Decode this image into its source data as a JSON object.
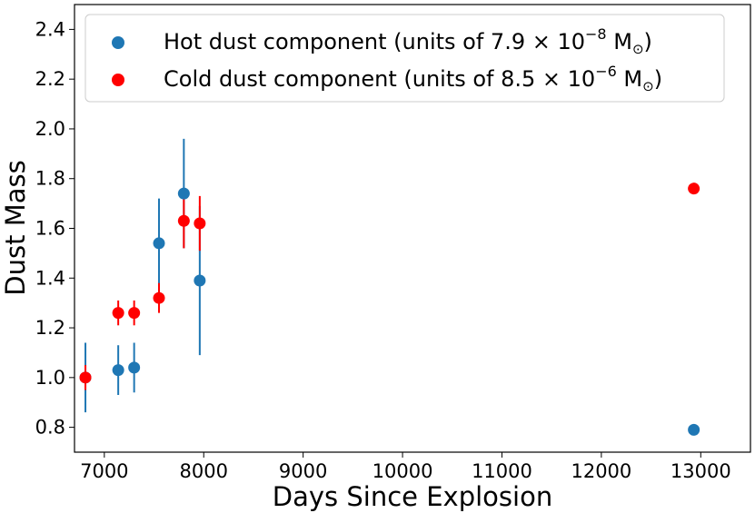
{
  "chart_data": {
    "type": "scatter",
    "xlabel": "Days Since Explosion",
    "ylabel": "Dust Mass",
    "xlim": [
      6700,
      13500
    ],
    "ylim": [
      0.7,
      2.5
    ],
    "xticks": [
      7000,
      8000,
      9000,
      10000,
      11000,
      12000,
      13000
    ],
    "yticks": [
      0.8,
      1.0,
      1.2,
      1.4,
      1.6,
      1.8,
      2.0,
      2.2,
      2.4
    ],
    "xtick_labels": [
      "7000",
      "8000",
      "9000",
      "10000",
      "11000",
      "12000",
      "13000"
    ],
    "ytick_labels": [
      "0.8",
      "1.0",
      "1.2",
      "1.4",
      "1.6",
      "1.8",
      "2.0",
      "2.2",
      "2.4"
    ],
    "grid": false,
    "legend_position": "top-left",
    "series": [
      {
        "name": "Hot dust component (units of 7.9 × 10⁻⁸ M☉)",
        "legend_main": "Hot dust component (units of 7.9 × 10",
        "legend_exp": "−8",
        "legend_unit": " M",
        "legend_sub": "⊙",
        "legend_close": ")",
        "color": "#1f77b4",
        "points": [
          {
            "x": 6810,
            "y": 1.0,
            "err": 0.14
          },
          {
            "x": 7140,
            "y": 1.03,
            "err": 0.1
          },
          {
            "x": 7300,
            "y": 1.04,
            "err": 0.1
          },
          {
            "x": 7550,
            "y": 1.54,
            "err": 0.18
          },
          {
            "x": 7800,
            "y": 1.74,
            "err": 0.22
          },
          {
            "x": 7960,
            "y": 1.39,
            "err": 0.3
          },
          {
            "x": 12930,
            "y": 0.79,
            "err": 0
          }
        ]
      },
      {
        "name": "Cold dust component (units of 8.5 × 10⁻⁶ M☉)",
        "legend_main": "Cold dust component (units of 8.5 × 10",
        "legend_exp": "−6",
        "legend_unit": " M",
        "legend_sub": "⊙",
        "legend_close": ")",
        "color": "#ff0000",
        "points": [
          {
            "x": 6810,
            "y": 1.0,
            "err": 0.05
          },
          {
            "x": 7140,
            "y": 1.26,
            "err": 0.05
          },
          {
            "x": 7300,
            "y": 1.26,
            "err": 0.05
          },
          {
            "x": 7550,
            "y": 1.32,
            "err": 0.06
          },
          {
            "x": 7800,
            "y": 1.63,
            "err": 0.11
          },
          {
            "x": 7960,
            "y": 1.62,
            "err": 0.11
          },
          {
            "x": 12930,
            "y": 1.76,
            "err": 0
          }
        ]
      }
    ]
  }
}
